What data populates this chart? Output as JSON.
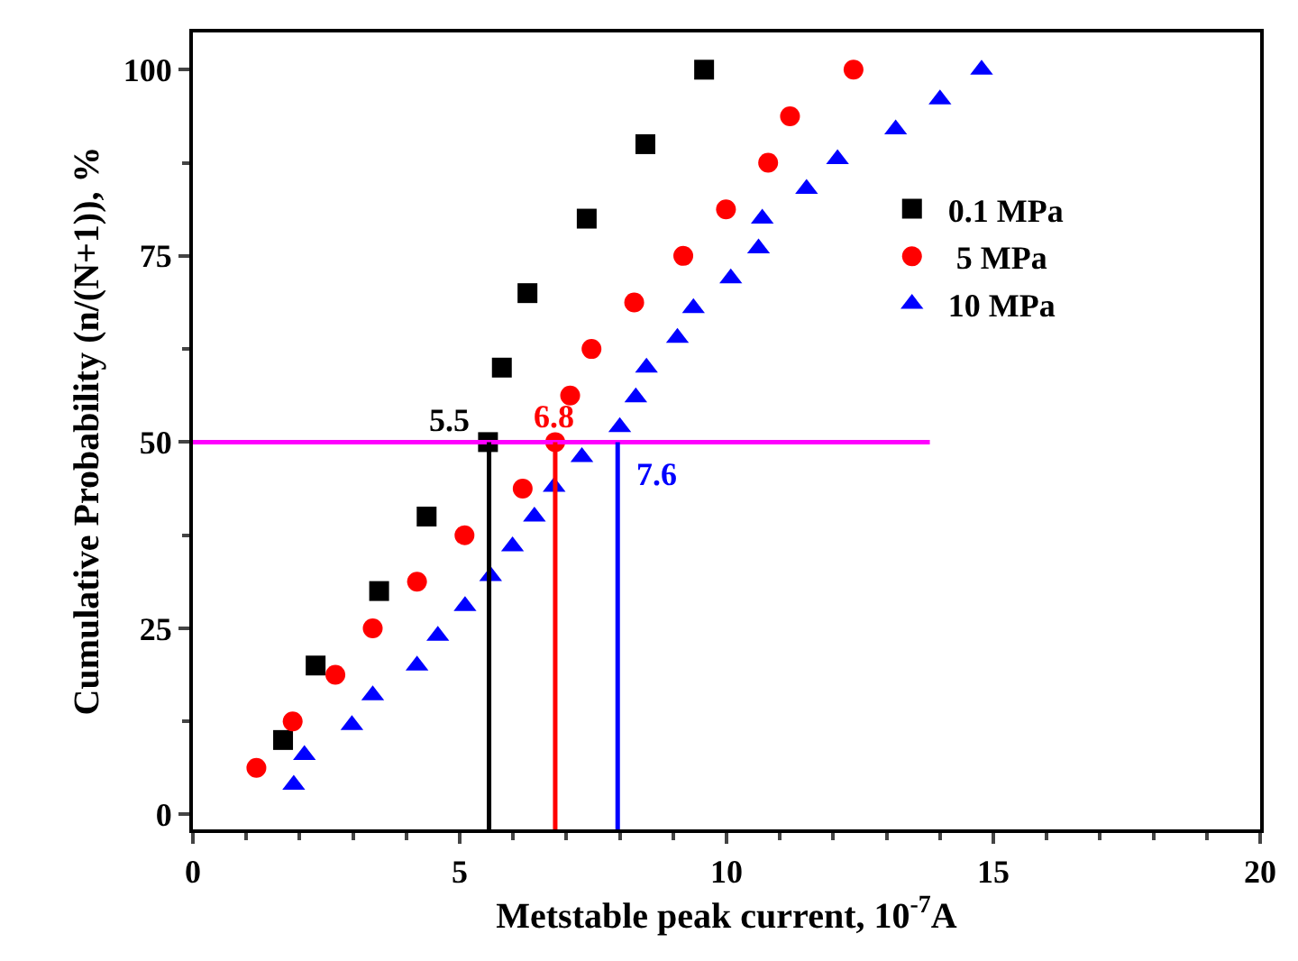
{
  "chart_data": {
    "type": "scatter",
    "xlabel": "Metstable peak current, 10$^{-7}$A",
    "ylabel": "Cumulative Probability (n/(N+1)), %",
    "xlim": [
      0,
      20
    ],
    "xticks": [
      0,
      5,
      10,
      15,
      20
    ],
    "ylim": [
      -2,
      105
    ],
    "yticks": [
      0,
      25,
      50,
      75,
      100
    ],
    "legend": "top right",
    "series": [
      {
        "name": "0.1 MPa",
        "color": "#000000",
        "marker": "square",
        "x": [
          1.69,
          2.3,
          3.49,
          4.38,
          5.53,
          5.79,
          6.27,
          7.38,
          8.48,
          9.58
        ],
        "values": [
          10,
          20,
          30,
          40,
          50,
          60,
          70,
          80,
          90,
          100
        ]
      },
      {
        "name": " 5 MPa",
        "color": "#ff0000",
        "marker": "circle",
        "x": [
          1.19,
          1.87,
          2.67,
          3.37,
          4.2,
          5.09,
          6.18,
          6.79,
          7.07,
          7.47,
          8.27,
          9.19,
          9.99,
          10.78,
          11.19,
          12.38
        ],
        "values": [
          6.25,
          12.5,
          18.75,
          25,
          31.25,
          37.5,
          43.75,
          50,
          56.25,
          62.5,
          68.75,
          75,
          81.25,
          87.5,
          93.75,
          100
        ]
      },
      {
        "name": "10 MPa",
        "color": "#0000ff",
        "marker": "triangle",
        "x": [
          1.89,
          2.09,
          2.98,
          3.37,
          4.2,
          4.59,
          5.1,
          5.58,
          5.99,
          6.4,
          6.77,
          7.29,
          8.0,
          8.3,
          8.5,
          9.08,
          9.38,
          10.08,
          10.6,
          10.67,
          11.5,
          12.08,
          13.17,
          14.0,
          14.78
        ],
        "values": [
          4,
          8,
          12,
          16,
          20,
          24,
          28,
          32,
          36,
          40,
          44,
          48,
          52,
          56,
          60,
          64,
          68,
          72,
          76,
          80,
          84,
          88,
          92,
          96,
          100
        ]
      },
      {
        "type": "line",
        "color": "#ff00ff",
        "x": [
          0,
          13.81
        ],
        "values": [
          50,
          50
        ]
      },
      {
        "type": "line",
        "name": "5.5",
        "color": "#000000",
        "x": [
          5.55,
          5.55
        ],
        "values": [
          -2,
          50
        ]
      },
      {
        "type": "line",
        "name": "6.8",
        "color": "#ff0000",
        "x": [
          6.79,
          6.79
        ],
        "values": [
          -2,
          50
        ]
      },
      {
        "type": "line",
        "name": "7.6",
        "color": "#0000ff",
        "x": [
          7.96,
          7.96
        ],
        "values": [
          -2,
          50
        ]
      }
    ]
  }
}
